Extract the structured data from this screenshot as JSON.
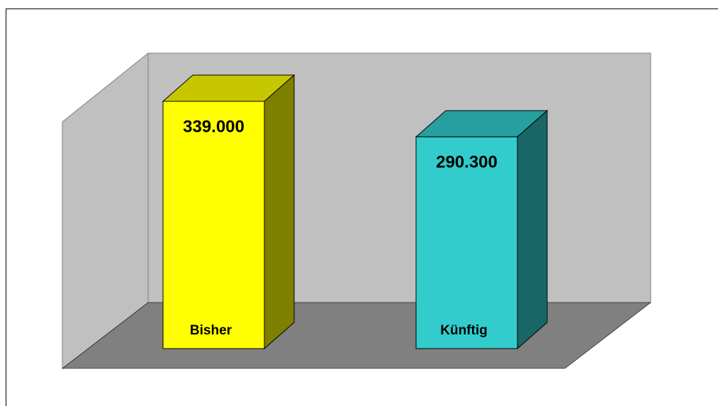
{
  "chart_data": {
    "type": "bar3d",
    "categories": [
      "Bisher",
      "Künftig"
    ],
    "values": [
      339000,
      290300
    ],
    "value_labels": [
      "339.000",
      "290.300"
    ],
    "colors": [
      "#ffff00",
      "#33cccc"
    ]
  }
}
